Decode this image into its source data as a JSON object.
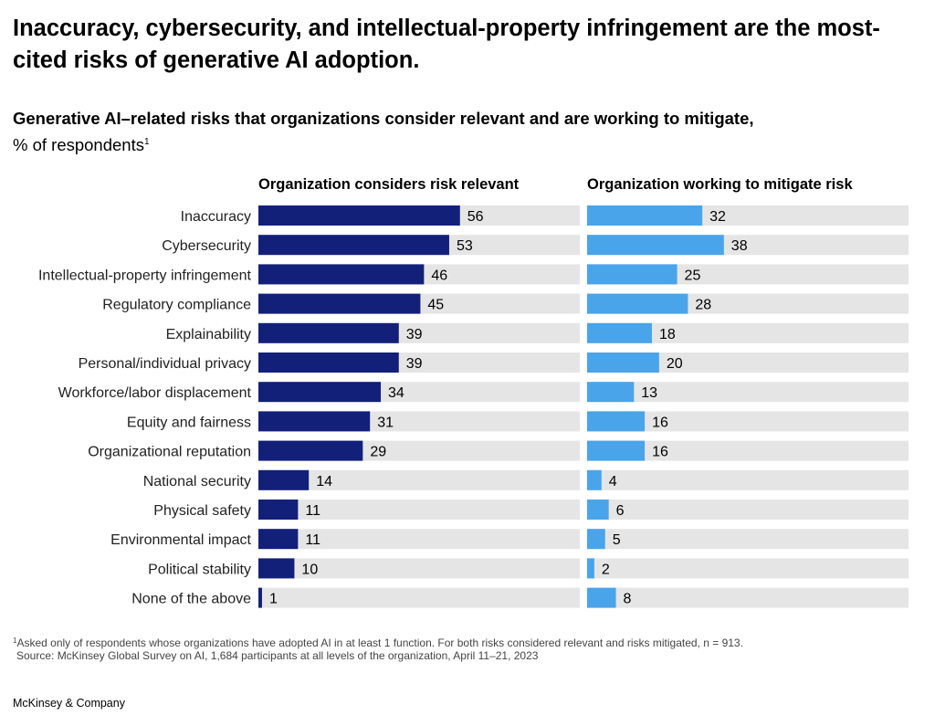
{
  "title": "Inaccuracy, cybersecurity, and intellectual-property infringement are the most-cited risks of generative AI adoption.",
  "subtitle": "Generative AI–related risks that organizations consider relevant and are working to mitigate,",
  "unit_label": "% of respondents",
  "unit_footnote_marker": "1",
  "footnote_marker": "1",
  "footnote": "Asked only of respondents whose organizations have adopted AI in at least 1 function. For both risks considered relevant and risks mitigated, n = 913.",
  "source": "Source: McKinsey Global Survey on AI, 1,684 participants at all levels of the organization, April 11–21, 2023",
  "brand": "McKinsey & Company",
  "colors": {
    "relevant": "#13207a",
    "mitigate": "#49a4ea",
    "track": "#e5e5e5"
  },
  "chart_data": {
    "type": "bar",
    "orientation": "horizontal",
    "categories": [
      "Inaccuracy",
      "Cybersecurity",
      "Intellectual-property infringement",
      "Regulatory compliance",
      "Explainability",
      "Personal/individual privacy",
      "Workforce/labor displacement",
      "Equity and fairness",
      "Organizational reputation",
      "National security",
      "Physical safety",
      "Environmental impact",
      "Political stability",
      "None of the above"
    ],
    "xlim": [
      0,
      100
    ],
    "grid": false,
    "legend": "none",
    "series": [
      {
        "name": "Organization considers risk relevant",
        "values": [
          56,
          53,
          46,
          45,
          39,
          39,
          34,
          31,
          29,
          14,
          11,
          11,
          10,
          1
        ]
      },
      {
        "name": "Organization working to mitigate risk",
        "values": [
          32,
          38,
          25,
          28,
          18,
          20,
          13,
          16,
          16,
          4,
          6,
          5,
          2,
          8
        ]
      }
    ]
  }
}
